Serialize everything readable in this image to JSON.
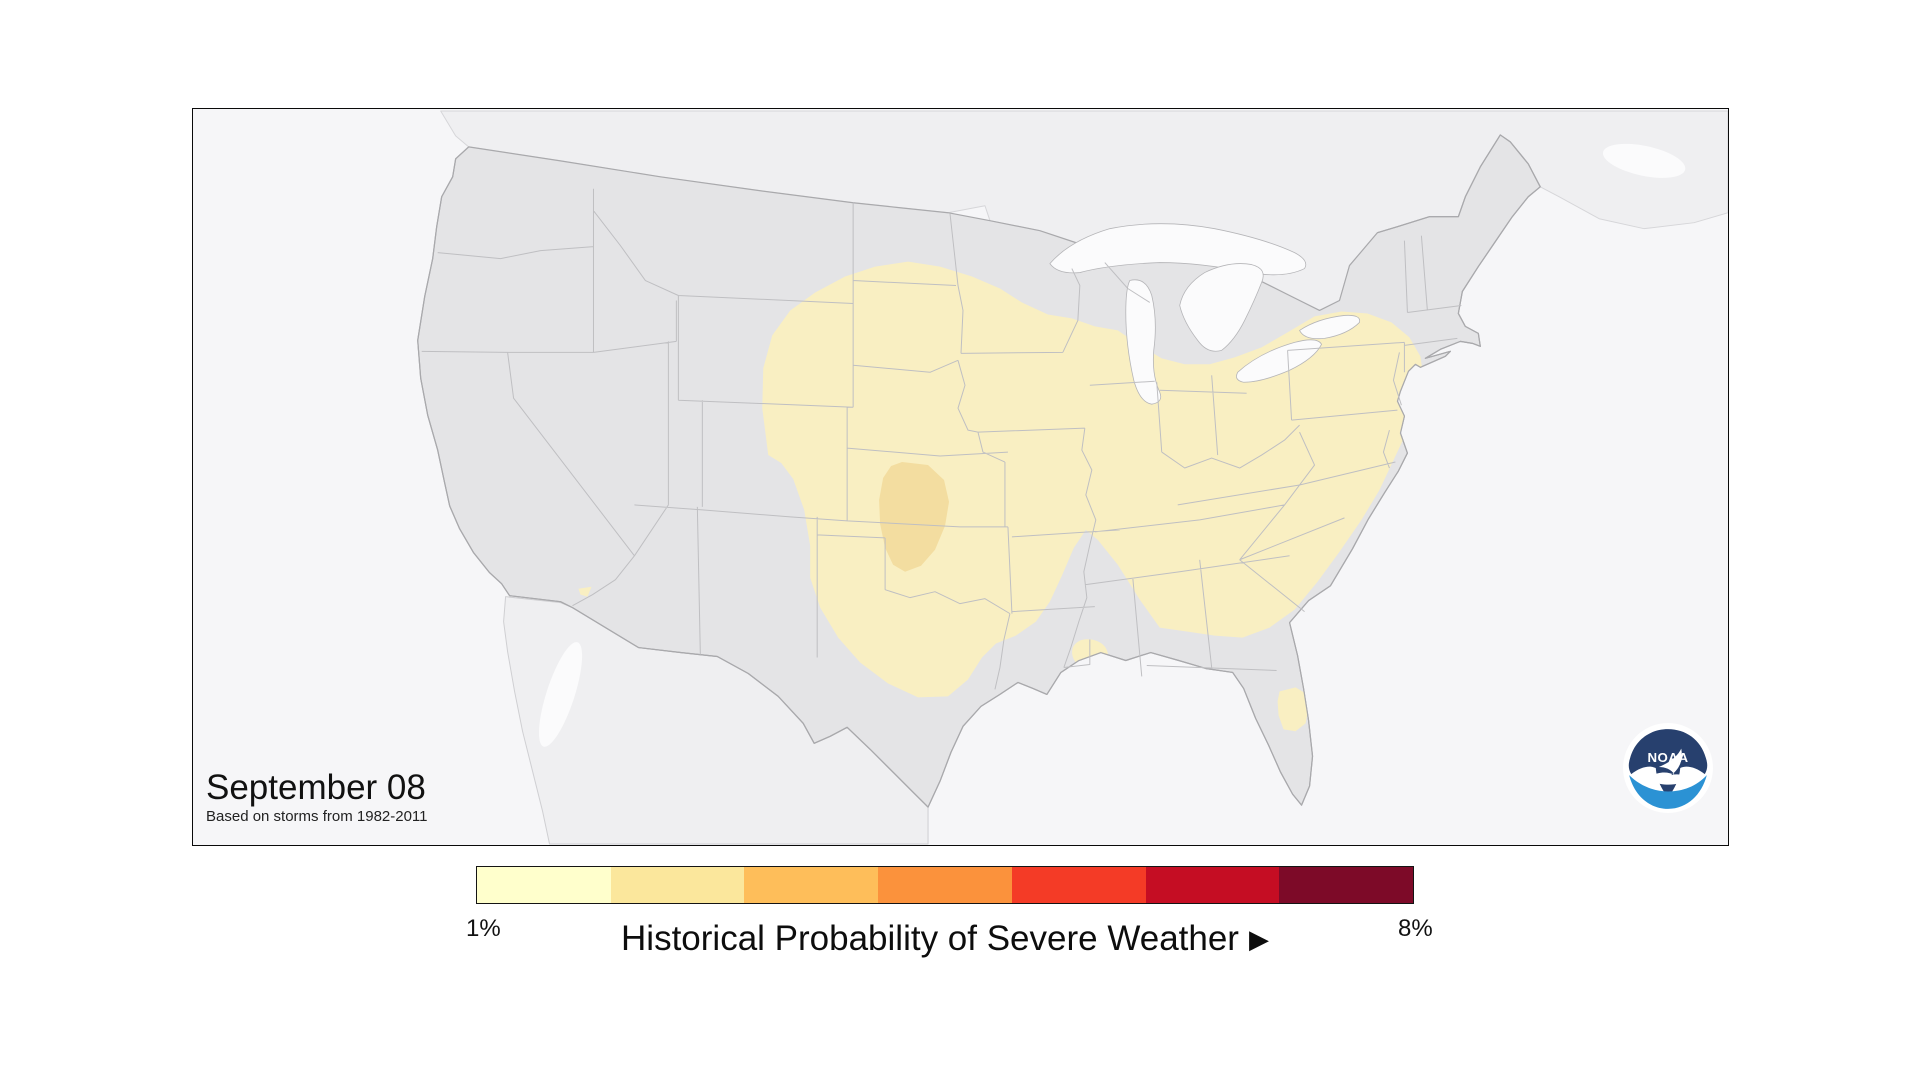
{
  "map": {
    "date_label": "September 08",
    "source_note": "Based on storms from 1982-2011",
    "colors": {
      "ocean": "#F6F6F8",
      "us_land": "#E4E4E6",
      "neighbor_land": "#EFEFF1",
      "lakes": "#FBFBFC",
      "state_border": "#BFBFC2",
      "coast_border": "#A9A9AC",
      "overlay_1pct": "#F9EFC2",
      "overlay_2pct": "#F3DDA0"
    },
    "overlay_regions": [
      {
        "name": "central-and-eastern-us",
        "level": "1-2%"
      },
      {
        "name": "kansas-oklahoma-core",
        "level": "2%"
      },
      {
        "name": "west-mississippi-spot",
        "level": "1%"
      },
      {
        "name": "north-florida-spot",
        "level": "1%"
      },
      {
        "name": "west-arizona-spot",
        "level": "1%"
      }
    ]
  },
  "noaa_logo": {
    "text": "NOAA",
    "navy": "#27406E",
    "light_blue": "#2B92D4",
    "white": "#FFFFFF"
  },
  "legend": {
    "title": "Historical Probability of Severe Weather",
    "arrow": "▶",
    "min_label": "1%",
    "max_label": "8%",
    "colors": [
      "#FFFFCC",
      "#FBE79C",
      "#FEBE5A",
      "#FB923C",
      "#F43B26",
      "#C50D23",
      "#7D0A28"
    ]
  }
}
